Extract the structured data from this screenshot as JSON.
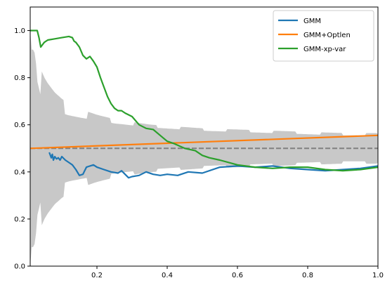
{
  "chart_data": {
    "type": "line",
    "xlim": [
      0.01,
      1.0
    ],
    "ylim": [
      0.0,
      1.1
    ],
    "x_ticks": [
      0.2,
      0.4,
      0.6,
      0.8,
      1.0
    ],
    "x_tick_labels": [
      "0.2",
      "0.4",
      "0.6",
      "0.8",
      "1.0"
    ],
    "y_ticks": [
      0.0,
      0.2,
      0.4,
      0.6,
      0.8,
      1.0
    ],
    "y_tick_labels": [
      "0.0",
      "0.2",
      "0.4",
      "0.6",
      "0.8",
      "1.0"
    ],
    "legend_position": "top-right",
    "reference_line": {
      "y": 0.5,
      "color": "#808080",
      "style": "dashed"
    },
    "confidence_band": {
      "color": "#c8c8c8",
      "x": [
        0.01,
        0.02,
        0.025,
        0.03,
        0.04,
        0.05,
        0.06,
        0.08,
        0.1,
        0.12,
        0.15,
        0.2,
        0.25,
        0.3,
        0.35,
        0.4,
        0.5,
        0.6,
        0.7,
        0.8,
        0.9,
        1.0
      ],
      "upper": [
        1.0,
        0.99,
        0.96,
        0.85,
        0.78,
        0.75,
        0.73,
        0.7,
        0.68,
        0.665,
        0.65,
        0.63,
        0.615,
        0.605,
        0.595,
        0.59,
        0.58,
        0.575,
        0.57,
        0.565,
        0.56,
        0.56
      ],
      "lower": [
        0.0,
        0.01,
        0.04,
        0.15,
        0.22,
        0.25,
        0.27,
        0.3,
        0.32,
        0.335,
        0.35,
        0.37,
        0.385,
        0.395,
        0.405,
        0.41,
        0.42,
        0.425,
        0.43,
        0.435,
        0.44,
        0.44
      ]
    },
    "series": [
      {
        "name": "GMM",
        "color": "#1f77b4",
        "x": [
          0.065,
          0.07,
          0.073,
          0.076,
          0.08,
          0.085,
          0.09,
          0.095,
          0.1,
          0.11,
          0.12,
          0.13,
          0.14,
          0.15,
          0.16,
          0.17,
          0.18,
          0.19,
          0.2,
          0.22,
          0.24,
          0.26,
          0.27,
          0.28,
          0.29,
          0.3,
          0.32,
          0.34,
          0.36,
          0.38,
          0.4,
          0.43,
          0.46,
          0.5,
          0.55,
          0.6,
          0.65,
          0.7,
          0.75,
          0.8,
          0.85,
          0.9,
          0.95,
          1.0
        ],
        "y": [
          0.48,
          0.46,
          0.475,
          0.45,
          0.465,
          0.455,
          0.46,
          0.45,
          0.465,
          0.45,
          0.44,
          0.43,
          0.41,
          0.385,
          0.39,
          0.42,
          0.425,
          0.43,
          0.42,
          0.41,
          0.4,
          0.395,
          0.405,
          0.39,
          0.375,
          0.38,
          0.385,
          0.4,
          0.39,
          0.385,
          0.39,
          0.385,
          0.4,
          0.395,
          0.42,
          0.425,
          0.42,
          0.425,
          0.415,
          0.41,
          0.405,
          0.41,
          0.415,
          0.425
        ]
      },
      {
        "name": "GMM+Optlen",
        "color": "#ff7f0e",
        "x": [
          0.01,
          1.0
        ],
        "y": [
          0.5,
          0.555
        ]
      },
      {
        "name": "GMM-xp-var",
        "color": "#2ca02c",
        "x": [
          0.01,
          0.03,
          0.035,
          0.04,
          0.05,
          0.06,
          0.08,
          0.1,
          0.12,
          0.13,
          0.135,
          0.14,
          0.15,
          0.16,
          0.17,
          0.18,
          0.19,
          0.2,
          0.21,
          0.22,
          0.23,
          0.24,
          0.25,
          0.26,
          0.27,
          0.28,
          0.3,
          0.32,
          0.34,
          0.36,
          0.38,
          0.4,
          0.42,
          0.45,
          0.48,
          0.5,
          0.52,
          0.55,
          0.6,
          0.65,
          0.7,
          0.75,
          0.8,
          0.85,
          0.9,
          0.95,
          1.0
        ],
        "y": [
          1.0,
          1.0,
          0.97,
          0.93,
          0.95,
          0.96,
          0.965,
          0.97,
          0.975,
          0.97,
          0.955,
          0.95,
          0.93,
          0.895,
          0.88,
          0.89,
          0.87,
          0.845,
          0.8,
          0.76,
          0.72,
          0.69,
          0.67,
          0.66,
          0.66,
          0.65,
          0.635,
          0.6,
          0.585,
          0.58,
          0.555,
          0.53,
          0.52,
          0.5,
          0.49,
          0.47,
          0.46,
          0.45,
          0.43,
          0.42,
          0.415,
          0.42,
          0.42,
          0.41,
          0.405,
          0.41,
          0.42
        ]
      }
    ]
  }
}
